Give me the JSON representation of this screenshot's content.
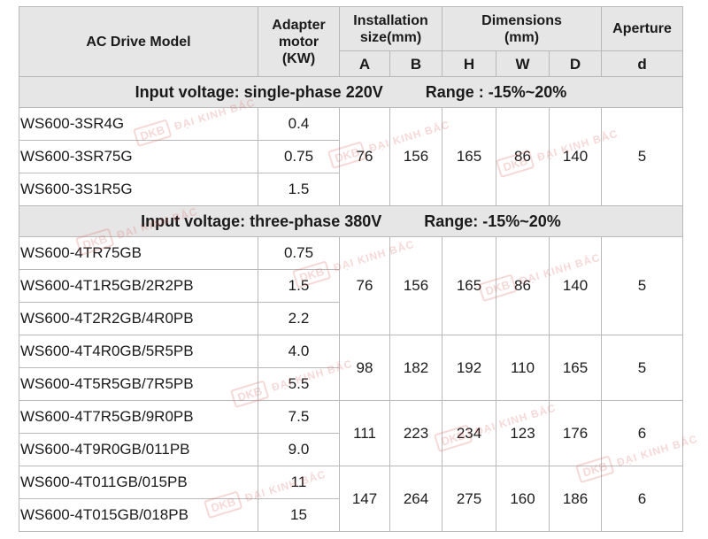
{
  "header": {
    "model": "AC Drive Model",
    "motor": [
      "Adapter",
      "motor",
      "(KW)"
    ],
    "installation": [
      "Installation",
      "size(mm)"
    ],
    "dimensions": [
      "Dimensions",
      "(mm)"
    ],
    "aperture": "Aperture",
    "sub": {
      "a": "A",
      "b": "B",
      "h": "H",
      "w": "W",
      "d_dim": "D",
      "d_ap": "d"
    }
  },
  "sections": [
    {
      "voltage": "Input voltage: single-phase 220V",
      "range": "Range : -15%~20%",
      "rows": [
        {
          "model": "WS600-3SR4G",
          "kw": "0.4"
        },
        {
          "model": "WS600-3SR75G",
          "kw": "0.75"
        },
        {
          "model": "WS600-3S1R5G",
          "kw": "1.5"
        }
      ],
      "groups": [
        {
          "a": "76",
          "b": "156",
          "h": "165",
          "w": "86",
          "d": "140",
          "ap": "5"
        }
      ]
    },
    {
      "voltage": "Input voltage: three-phase 380V",
      "range": "Range: -15%~20%",
      "rows": [
        {
          "model": "WS600-4TR75GB",
          "kw": "0.75"
        },
        {
          "model": "WS600-4T1R5GB/2R2PB",
          "kw": "1.5"
        },
        {
          "model": "WS600-4T2R2GB/4R0PB",
          "kw": "2.2"
        },
        {
          "model": "WS600-4T4R0GB/5R5PB",
          "kw": "4.0"
        },
        {
          "model": "WS600-4T5R5GB/7R5PB",
          "kw": "5.5"
        },
        {
          "model": "WS600-4T7R5GB/9R0PB",
          "kw": "7.5"
        },
        {
          "model": "WS600-4T9R0GB/011PB",
          "kw": "9.0"
        },
        {
          "model": "WS600-4T011GB/015PB",
          "kw": "11"
        },
        {
          "model": "WS600-4T015GB/018PB",
          "kw": "15"
        }
      ],
      "groups": [
        {
          "a": "76",
          "b": "156",
          "h": "165",
          "w": "86",
          "d": "140",
          "ap": "5"
        },
        {
          "a": "98",
          "b": "182",
          "h": "192",
          "w": "110",
          "d": "165",
          "ap": "5"
        },
        {
          "a": "111",
          "b": "223",
          "h": "234",
          "w": "123",
          "d": "176",
          "ap": "6"
        },
        {
          "a": "147",
          "b": "264",
          "h": "275",
          "w": "160",
          "d": "186",
          "ap": "6"
        }
      ]
    }
  ],
  "watermark": {
    "logo": "DKB",
    "text": "ĐẠI KINH BẮC",
    "color": "#d9534f"
  }
}
